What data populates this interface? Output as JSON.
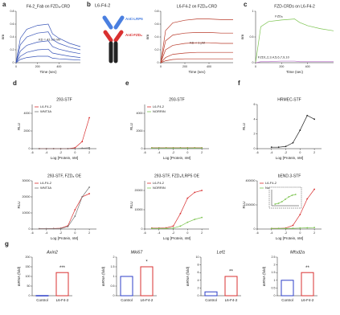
{
  "panel_labels": [
    "a",
    "b",
    "c",
    "d",
    "e",
    "f",
    "g"
  ],
  "diagram_title": "L6-F4-2",
  "diagram_labels": [
    "Anti-LRP6",
    "Anti-FZD₈"
  ],
  "chart_data": [
    {
      "type": "line",
      "title": "F4-2_Fab on FZD₈-CRD",
      "x_label": "Time (sec)",
      "y_label": "nm",
      "annotations": [
        "KD = 41.03 nM"
      ],
      "xlim": [
        0,
        600
      ],
      "xticks": [
        0,
        200,
        400
      ],
      "ylim": [
        0,
        0.8
      ],
      "yticks": [
        0,
        0.2,
        0.4,
        0.6,
        0.8
      ],
      "x": [
        0,
        40,
        100,
        200,
        300,
        340,
        400,
        500,
        600
      ],
      "series": [
        {
          "color": "#3a56b8",
          "values": [
            0,
            0.38,
            0.52,
            0.58,
            0.6,
            0.45,
            0.38,
            0.3,
            0.25
          ]
        },
        {
          "color": "#3a56b8",
          "values": [
            0,
            0.28,
            0.4,
            0.46,
            0.48,
            0.36,
            0.3,
            0.24,
            0.2
          ]
        },
        {
          "color": "#3a56b8",
          "values": [
            0,
            0.18,
            0.27,
            0.32,
            0.34,
            0.25,
            0.21,
            0.17,
            0.14
          ]
        },
        {
          "color": "#3a56b8",
          "values": [
            0,
            0.1,
            0.16,
            0.2,
            0.21,
            0.15,
            0.13,
            0.1,
            0.08
          ]
        },
        {
          "color": "#3a56b8",
          "values": [
            0,
            0.05,
            0.08,
            0.1,
            0.1,
            0.07,
            0.06,
            0.05,
            0.04
          ]
        }
      ]
    },
    {
      "type": "line",
      "title": "L6-F4-2 on FZD₈-CRD",
      "x_label": "Time (sec)",
      "y_label": "nm",
      "annotations": [
        "KD < 1 pM"
      ],
      "xlim": [
        0,
        600
      ],
      "xticks": [
        0,
        200,
        400
      ],
      "ylim": [
        0,
        0.8
      ],
      "yticks": [
        0,
        0.2,
        0.4,
        0.6,
        0.8
      ],
      "x": [
        0,
        40,
        100,
        200,
        300,
        340,
        400,
        500,
        600
      ],
      "series": [
        {
          "color": "#b83a2a",
          "values": [
            0,
            0.5,
            0.62,
            0.66,
            0.68,
            0.68,
            0.68,
            0.67,
            0.67
          ]
        },
        {
          "color": "#b83a2a",
          "values": [
            0,
            0.34,
            0.43,
            0.46,
            0.47,
            0.47,
            0.47,
            0.46,
            0.46
          ]
        },
        {
          "color": "#b83a2a",
          "values": [
            0,
            0.2,
            0.27,
            0.3,
            0.31,
            0.31,
            0.31,
            0.3,
            0.3
          ]
        },
        {
          "color": "#b83a2a",
          "values": [
            0,
            0.08,
            0.13,
            0.15,
            0.16,
            0.16,
            0.16,
            0.16,
            0.16
          ]
        },
        {
          "color": "#b83a2a",
          "values": [
            0,
            0.03,
            0.05,
            0.06,
            0.06,
            0.06,
            0.06,
            0.06,
            0.06
          ]
        }
      ]
    },
    {
      "type": "line",
      "title": "FZD-CRDs on L6-F4-2",
      "x_label": "Time (sec)",
      "y_label": "nm",
      "annotations": [
        "FZD₈",
        "FZD1,2,3,4,5,6,7,9,10"
      ],
      "xlim": [
        0,
        600
      ],
      "xticks": [
        0,
        200,
        400
      ],
      "ylim": [
        0,
        1
      ],
      "yticks": [
        0,
        0.5,
        1
      ],
      "x": [
        0,
        40,
        100,
        200,
        300,
        340,
        400,
        500,
        600
      ],
      "series": [
        {
          "color": "#7cc450",
          "values": [
            0,
            0.7,
            0.8,
            0.83,
            0.85,
            0.78,
            0.72,
            0.66,
            0.62
          ]
        },
        {
          "color": "#c07ad0",
          "values": [
            0,
            0.02,
            0.02,
            0.03,
            0.03,
            0.02,
            0.02,
            0.02,
            0.02
          ]
        }
      ]
    },
    {
      "type": "line",
      "markers": true,
      "title": "293-STF",
      "x_label": "Log [Protein, nM]",
      "y_label": "RLU",
      "xlim": [
        -6,
        3
      ],
      "xticks": [
        -6,
        -4,
        -2,
        0,
        2
      ],
      "ylim": [
        0,
        5000
      ],
      "yticks": [
        0,
        2000,
        4000
      ],
      "x": [
        -5,
        -4,
        -3,
        -2,
        -1,
        0,
        1,
        2
      ],
      "series": [
        {
          "name": "L6-F4-2",
          "color": "#d93030",
          "values": [
            0,
            0,
            0,
            0,
            0,
            100,
            800,
            3500
          ]
        },
        {
          "name": "WNT3A",
          "color": "#777777",
          "values": [
            0,
            0,
            0,
            0,
            0,
            0,
            50,
            100
          ]
        }
      ]
    },
    {
      "type": "line",
      "markers": true,
      "title": "293-STF, FZD₈ OE",
      "x_label": "Log [Protein, nM]",
      "y_label": "RLU",
      "xlim": [
        -6,
        3
      ],
      "xticks": [
        -6,
        -4,
        -2,
        0,
        2
      ],
      "ylim": [
        0,
        30000
      ],
      "yticks": [
        0,
        10000,
        20000,
        30000
      ],
      "x": [
        -5,
        -4,
        -3,
        -2,
        -1,
        0,
        1,
        2
      ],
      "series": [
        {
          "name": "L6-F4-2",
          "color": "#d93030",
          "values": [
            200,
            200,
            300,
            500,
            2000,
            12000,
            20000,
            22000
          ]
        },
        {
          "name": "WNT3A",
          "color": "#777777",
          "values": [
            200,
            200,
            200,
            300,
            1500,
            8000,
            20000,
            26000
          ]
        }
      ]
    },
    {
      "type": "line",
      "markers": true,
      "title": "293-STF",
      "x_label": "Log [Protein, nM]",
      "y_label": "RLU",
      "xlim": [
        -6,
        3
      ],
      "xticks": [
        -6,
        -4,
        -2,
        0,
        2
      ],
      "ylim": [
        0,
        5000
      ],
      "yticks": [
        0,
        2000,
        4000
      ],
      "x": [
        -5,
        -4,
        -3,
        -2,
        -1,
        0,
        1,
        2
      ],
      "series": [
        {
          "name": "L6-F4-2",
          "color": "#d93030",
          "values": [
            100,
            100,
            100,
            100,
            100,
            100,
            100,
            100
          ]
        },
        {
          "name": "NORRIN",
          "color": "#7cc450",
          "values": [
            80,
            80,
            80,
            80,
            80,
            80,
            80,
            80
          ]
        }
      ]
    },
    {
      "type": "line",
      "markers": true,
      "title": "293-STF, FZD₄/LRP5 OE",
      "x_label": "Log [Protein, nM]",
      "y_label": "RLU",
      "xlim": [
        -6,
        3
      ],
      "xticks": [
        -6,
        -4,
        -2,
        0,
        2
      ],
      "ylim": [
        0,
        25000
      ],
      "yticks": [
        0,
        10000,
        20000
      ],
      "x": [
        -5,
        -4,
        -3,
        -2,
        -1,
        0,
        1,
        2
      ],
      "series": [
        {
          "name": "L6-F4-2",
          "color": "#d93030",
          "values": [
            500,
            500,
            600,
            1500,
            8000,
            16000,
            19000,
            20000
          ]
        },
        {
          "name": "NORRIN",
          "color": "#7cc450",
          "values": [
            300,
            300,
            300,
            500,
            1500,
            3500,
            5000,
            6000
          ]
        }
      ]
    },
    {
      "type": "line",
      "markers": true,
      "title": "HRMEC-STF",
      "x_label": "Log [Protein, nM]",
      "y_label": "RLU",
      "xlim": [
        -6,
        3
      ],
      "xticks": [
        -6,
        -4,
        -2,
        0,
        2
      ],
      "ylim": [
        0,
        6
      ],
      "yticks": [
        0,
        2,
        4,
        6
      ],
      "x": [
        -4,
        -3,
        -2,
        -1,
        0,
        1,
        2
      ],
      "series": [
        {
          "color": "#222222",
          "values": [
            0.2,
            0.2,
            0.3,
            0.8,
            2.5,
            4.5,
            4
          ]
        }
      ]
    },
    {
      "type": "line",
      "markers": true,
      "title": "bEND.3-STF",
      "x_label": "Log [Protein, nM]",
      "y_label": "RLU",
      "xlim": [
        -6,
        3
      ],
      "xticks": [
        -6,
        -4,
        -2,
        0,
        2
      ],
      "ylim": [
        0,
        400000
      ],
      "yticks": [
        0,
        200000,
        400000
      ],
      "x": [
        -4,
        -3,
        -2,
        -1,
        0,
        1,
        2
      ],
      "series": [
        {
          "name": "L6-F4-2",
          "color": "#d93030",
          "values": [
            5000,
            5000,
            8000,
            30000,
            120000,
            250000,
            330000
          ]
        },
        {
          "name": "Norrin",
          "color": "#7cc450",
          "values": [
            5000,
            5000,
            5000,
            6000,
            8000,
            10000,
            12000
          ]
        }
      ]
    },
    {
      "type": "line",
      "markers": true,
      "xlim": [
        -5,
        3
      ],
      "ylim": [
        0,
        20000
      ],
      "x": [
        -4,
        -3,
        -2,
        -1,
        0,
        1,
        2
      ],
      "series": [
        {
          "color": "#7cc450",
          "values": [
            2000,
            3000,
            5000,
            8000,
            11000,
            13000,
            14000
          ]
        }
      ]
    },
    {
      "type": "bar",
      "title": "Axin2",
      "y_label": "mRNA (fold)",
      "annotation": "***",
      "categories": [
        "Control",
        "L6-F4-2"
      ],
      "values": [
        1,
        120
      ],
      "colors": [
        "#2d3fc8",
        "#d93030"
      ],
      "ylim": [
        0,
        200
      ],
      "yticks": [
        0,
        50,
        100,
        150,
        200
      ]
    },
    {
      "type": "bar",
      "title": "Mki67",
      "y_label": "mRNA (fold)",
      "annotation": "*",
      "categories": [
        "Control",
        "L6-F4-2"
      ],
      "values": [
        1,
        1.5
      ],
      "colors": [
        "#2d3fc8",
        "#d93030"
      ],
      "ylim": [
        0,
        2
      ],
      "yticks": [
        0,
        0.5,
        1,
        1.5,
        2
      ]
    },
    {
      "type": "bar",
      "title": "Lef1",
      "y_label": "mRNA (fold)",
      "annotation": "**",
      "categories": [
        "Control",
        "L6-F4-2"
      ],
      "values": [
        1,
        5
      ],
      "colors": [
        "#2d3fc8",
        "#d93030"
      ],
      "ylim": [
        0,
        10
      ],
      "yticks": [
        0,
        2,
        4,
        6,
        8,
        10
      ]
    },
    {
      "type": "bar",
      "title": "Mfsd2a",
      "y_label": "mRNA (fold)",
      "annotation": "**",
      "categories": [
        "Control",
        "L6-F4-2"
      ],
      "values": [
        1,
        1.5
      ],
      "colors": [
        "#2d3fc8",
        "#d93030"
      ],
      "ylim": [
        0,
        2.5
      ],
      "yticks": [
        0,
        0.5,
        1,
        1.5,
        2,
        2.5
      ]
    }
  ]
}
